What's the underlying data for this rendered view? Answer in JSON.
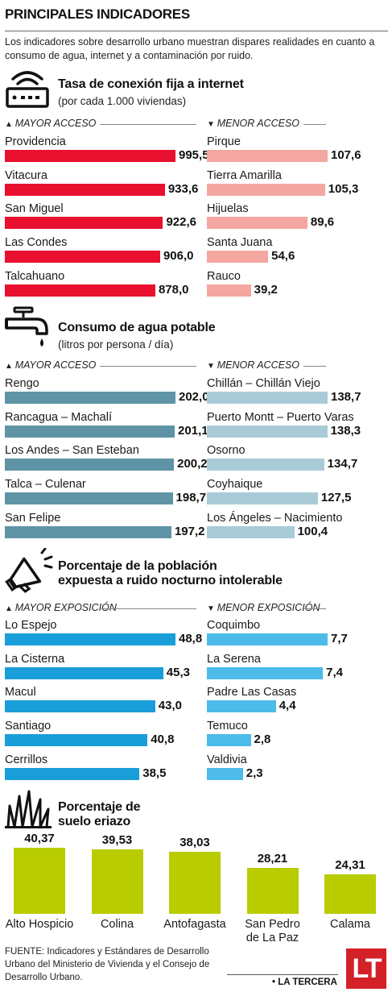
{
  "header": {
    "title": "PRINCIPALES INDICADORES",
    "intro": "Los indicadores sobre desarrollo urbano muestran dispares realidades en cuanto a consumo de agua, internet y a contaminación por ruido."
  },
  "colors": {
    "internet": "#e8102e",
    "internet_low": "#f4a7a0",
    "agua": "#5f93a6",
    "agua_low": "#a9cbd8",
    "ruido": "#1a9ed9",
    "ruido_low": "#4dbbe9",
    "eriazo": "#b8cc00"
  },
  "chart_data": [
    {
      "type": "bar",
      "title": "Tasa de conexión fija a internet",
      "subtitle": "(por cada 1.000 viviendas)",
      "icon": "wifi-router-icon",
      "groups": [
        {
          "name": "MAYOR ACCESO",
          "direction": "up",
          "categories": [
            "Providencia",
            "Vitacura",
            "San Miguel",
            "Las Condes",
            "Talcahuano"
          ],
          "values": [
            995.5,
            933.6,
            922.6,
            906.0,
            878.0
          ],
          "labels": [
            "995,5",
            "933,6",
            "922,6",
            "906,0",
            "878,0"
          ]
        },
        {
          "name": "MENOR ACCESO",
          "direction": "down",
          "categories": [
            "Pirque",
            "Tierra Amarilla",
            "Hijuelas",
            "Santa Juana",
            "Rauco"
          ],
          "values": [
            107.6,
            105.3,
            89.6,
            54.6,
            39.2
          ],
          "labels": [
            "107,6",
            "105,3",
            "89,6",
            "54,6",
            "39,2"
          ]
        }
      ]
    },
    {
      "type": "bar",
      "title": "Consumo de agua potable",
      "subtitle": "(litros por persona / día)",
      "icon": "faucet-icon",
      "groups": [
        {
          "name": "MAYOR ACCESO",
          "direction": "up",
          "categories": [
            "Rengo",
            "Rancagua – Machalí",
            "Los Andes – San Esteban",
            "Talca – Culenar",
            "San Felipe"
          ],
          "values": [
            202.0,
            201.1,
            200.2,
            198.7,
            197.2
          ],
          "labels": [
            "202,0",
            "201,1",
            "200,2",
            "198,7",
            "197,2"
          ]
        },
        {
          "name": "MENOR ACCESO",
          "direction": "down",
          "categories": [
            "Chillán – Chillán Viejo",
            "Puerto Montt – Puerto Varas",
            "Osorno",
            "Coyhaique",
            "Los Ángeles – Nacimiento"
          ],
          "values": [
            138.7,
            138.3,
            134.7,
            127.5,
            100.4
          ],
          "labels": [
            "138,7",
            "138,3",
            "134,7",
            "127,5",
            "100,4"
          ]
        }
      ]
    },
    {
      "type": "bar",
      "title": "Porcentaje de la población expuesta a ruido nocturno intolerable",
      "title_lines": [
        "Porcentaje de la población",
        "expuesta a ruido nocturno intolerable"
      ],
      "subtitle": "",
      "icon": "megaphone-icon",
      "groups": [
        {
          "name": "MAYOR EXPOSICIÓN",
          "direction": "up",
          "categories": [
            "Lo Espejo",
            "La Cisterna",
            "Macul",
            "Santiago",
            "Cerrillos"
          ],
          "values": [
            48.8,
            45.3,
            43.0,
            40.8,
            38.5
          ],
          "labels": [
            "48,8",
            "45,3",
            "43,0",
            "40,8",
            "38,5"
          ]
        },
        {
          "name": "MENOR EXPOSICIÓN",
          "direction": "down",
          "categories": [
            "Coquimbo",
            "La Serena",
            "Padre Las Casas",
            "Temuco",
            "Valdivia"
          ],
          "values": [
            7.7,
            7.4,
            4.4,
            2.8,
            2.3
          ],
          "labels": [
            "7,7",
            "7,4",
            "4,4",
            "2,8",
            "2,3"
          ]
        }
      ]
    },
    {
      "type": "bar",
      "title": "Porcentaje de suelo eriazo",
      "title_lines": [
        "Porcentaje de",
        "suelo eriazo"
      ],
      "icon": "grass-icon",
      "categories": [
        "Alto Hospicio",
        "Colina",
        "Antofagasta",
        "San Pedro de La Paz",
        "Calama"
      ],
      "category_lines": [
        [
          "Alto Hospicio"
        ],
        [
          "Colina"
        ],
        [
          "Antofagasta"
        ],
        [
          "San Pedro",
          "de La Paz"
        ],
        [
          "Calama"
        ]
      ],
      "values": [
        40.37,
        39.53,
        38.03,
        28.21,
        24.31
      ],
      "labels": [
        "40,37",
        "39,53",
        "38,03",
        "28,21",
        "24,31"
      ]
    }
  ],
  "footer": {
    "source": "FUENTE: Indicadores y Estándares de Desarrollo Urbano del Ministerio de Vivienda y el Consejo de Desarrollo Urbano.",
    "brand": "• LA TERCERA",
    "logo": "LT"
  }
}
